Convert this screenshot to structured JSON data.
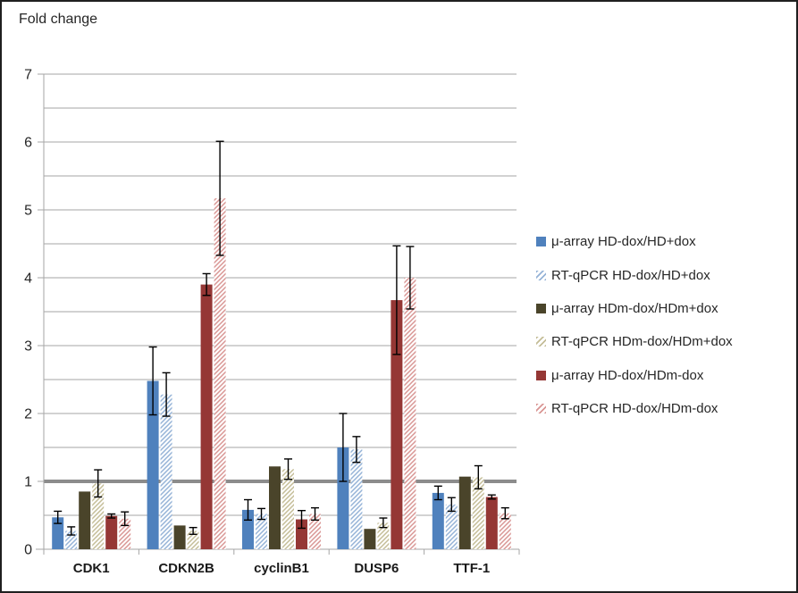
{
  "chart_data": {
    "type": "bar",
    "title": "Fold change",
    "xlabel": "",
    "ylabel": "Fold change",
    "ylim": [
      0,
      7
    ],
    "ytick_step": 1,
    "minor_grid_step": 0.5,
    "reference_line_y": 1,
    "grid": true,
    "legend_position": "right",
    "categories": [
      "CDK1",
      "CDKN2B",
      "cyclinB1",
      "DUSP6",
      "TTF-1"
    ],
    "series": [
      {
        "name": "μ-array HD-dox/HD+dox",
        "style": "solid",
        "color": "#4F81BD",
        "values": [
          0.47,
          2.48,
          0.58,
          1.5,
          0.83
        ],
        "errors": [
          0.09,
          0.5,
          0.15,
          0.5,
          0.1
        ]
      },
      {
        "name": "RT-qPCR HD-dox/HD+dox",
        "style": "hatched",
        "color": "#95B3D7",
        "values": [
          0.27,
          2.28,
          0.52,
          1.47,
          0.66
        ],
        "errors": [
          0.06,
          0.32,
          0.08,
          0.19,
          0.1
        ]
      },
      {
        "name": "μ-array HDm-dox/HDm+dox",
        "style": "solid",
        "color": "#4A442A",
        "values": [
          0.85,
          0.35,
          1.22,
          0.3,
          1.07
        ],
        "errors": [
          0,
          0,
          0,
          0,
          0
        ]
      },
      {
        "name": "RT-qPCR HDm-dox/HDm+dox",
        "style": "hatched",
        "color": "#C4BD97",
        "values": [
          0.97,
          0.27,
          1.18,
          0.39,
          1.06
        ],
        "errors": [
          0.2,
          0.05,
          0.15,
          0.07,
          0.17
        ]
      },
      {
        "name": "μ-array HD-dox/HDm-dox",
        "style": "solid",
        "color": "#953735",
        "values": [
          0.49,
          3.9,
          0.44,
          3.67,
          0.77
        ],
        "errors": [
          0.03,
          0.16,
          0.13,
          0.8,
          0.03
        ]
      },
      {
        "name": "RT-qPCR HD-dox/HDm-dox",
        "style": "hatched",
        "color": "#D99694",
        "values": [
          0.45,
          5.17,
          0.52,
          4.0,
          0.53
        ],
        "errors": [
          0.1,
          0.84,
          0.09,
          0.46,
          0.08
        ]
      }
    ],
    "colors": {
      "gridline": "#A6A6A6",
      "axis_line": "#A6A6A6",
      "reference_line": "#8C8C8C",
      "error_bar": "#000000",
      "text": "#262626"
    }
  }
}
